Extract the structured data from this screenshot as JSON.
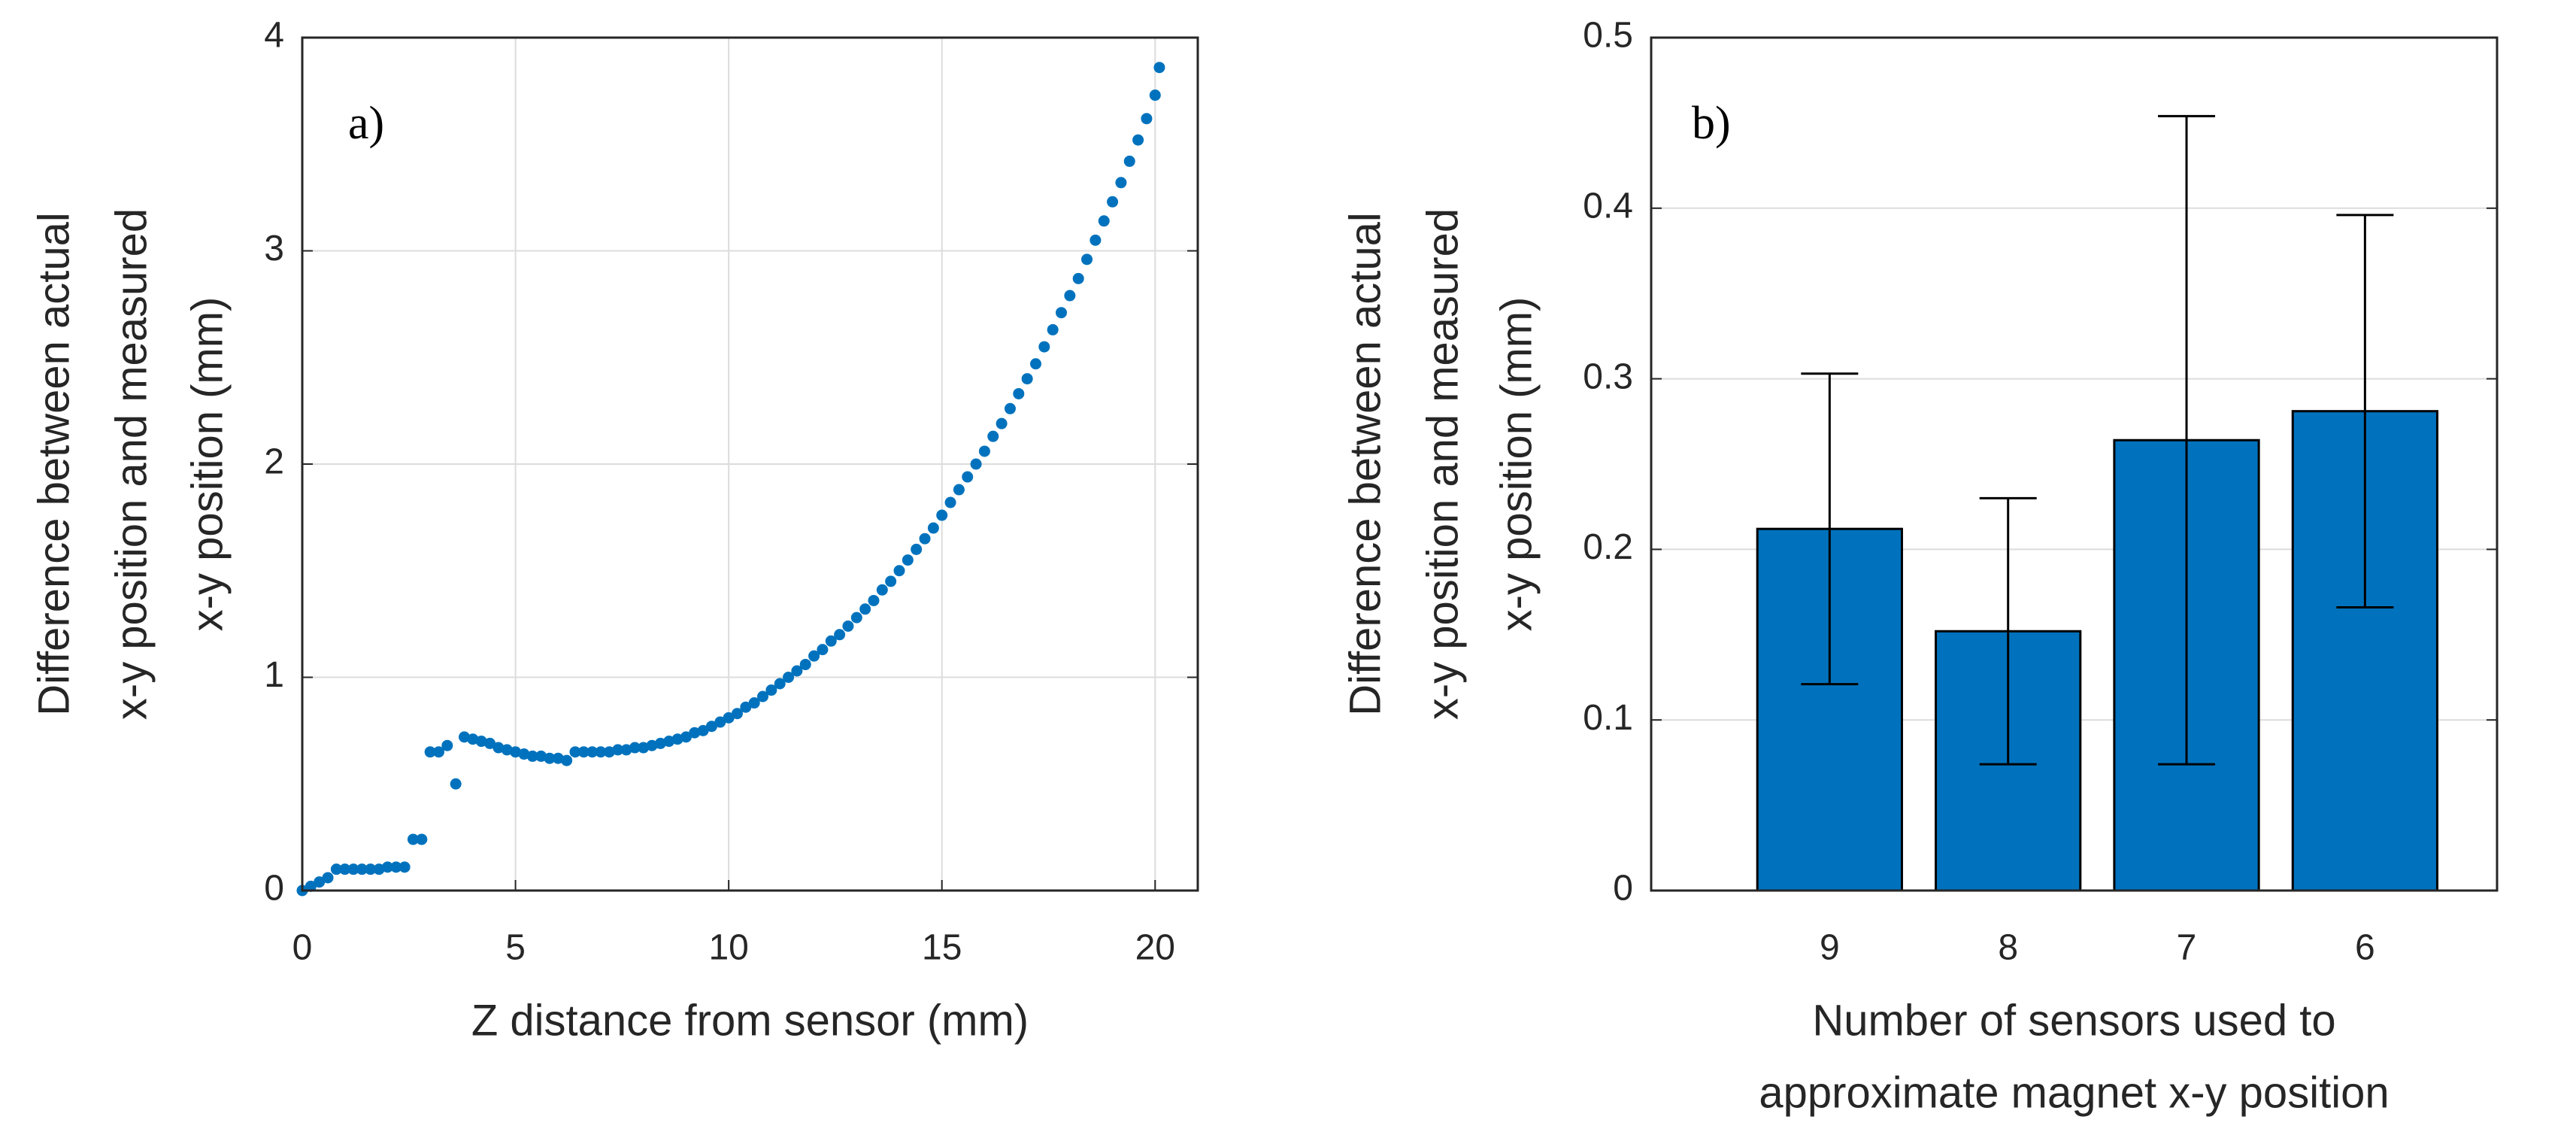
{
  "chart_data": [
    {
      "type": "scatter",
      "annotation": "a)",
      "xlabel": "Z distance from sensor (mm)",
      "ylabel": [
        "Difference between actual",
        "x-y position and measured",
        "x-y position (mm)"
      ],
      "color": "#0072bd",
      "x": [
        0,
        0.2,
        0.4,
        0.6,
        0.8,
        1,
        1.2,
        1.4,
        1.6,
        1.8,
        2,
        2.2,
        2.4,
        2.6,
        2.8,
        3,
        3.2,
        3.4,
        3.6,
        3.8,
        4,
        4.2,
        4.4,
        4.6,
        4.8,
        5,
        5.2,
        5.4,
        5.6,
        5.8,
        6,
        6.2,
        6.4,
        6.6,
        6.8,
        7,
        7.2,
        7.4,
        7.6,
        7.8,
        8,
        8.2,
        8.4,
        8.6,
        8.8,
        9,
        9.2,
        9.4,
        9.6,
        9.8,
        10,
        10.2,
        10.4,
        10.6,
        10.8,
        11,
        11.2,
        11.4,
        11.6,
        11.8,
        12,
        12.2,
        12.4,
        12.6,
        12.8,
        13,
        13.2,
        13.4,
        13.6,
        13.8,
        14,
        14.2,
        14.4,
        14.6,
        14.8,
        15,
        15.2,
        15.4,
        15.6,
        15.8,
        16,
        16.2,
        16.4,
        16.6,
        16.8,
        17,
        17.2,
        17.4,
        17.6,
        17.8,
        18,
        18.2,
        18.4,
        18.6,
        18.8,
        19,
        19.2,
        19.4,
        19.6,
        19.8,
        20,
        20.1
      ],
      "values": [
        0,
        0.02,
        0.04,
        0.06,
        0.1,
        0.1,
        0.1,
        0.1,
        0.1,
        0.1,
        0.11,
        0.11,
        0.11,
        0.24,
        0.24,
        0.65,
        0.65,
        0.68,
        0.5,
        0.72,
        0.71,
        0.7,
        0.69,
        0.67,
        0.66,
        0.65,
        0.64,
        0.63,
        0.63,
        0.62,
        0.62,
        0.61,
        0.65,
        0.65,
        0.65,
        0.65,
        0.65,
        0.66,
        0.66,
        0.67,
        0.67,
        0.68,
        0.69,
        0.7,
        0.71,
        0.72,
        0.74,
        0.75,
        0.77,
        0.79,
        0.81,
        0.83,
        0.86,
        0.88,
        0.91,
        0.94,
        0.97,
        1,
        1.03,
        1.06,
        1.1,
        1.13,
        1.17,
        1.2,
        1.24,
        1.28,
        1.32,
        1.36,
        1.41,
        1.45,
        1.5,
        1.55,
        1.6,
        1.65,
        1.7,
        1.76,
        1.82,
        1.88,
        1.94,
        2,
        2.06,
        2.13,
        2.19,
        2.26,
        2.33,
        2.4,
        2.47,
        2.55,
        2.63,
        2.71,
        2.79,
        2.87,
        2.96,
        3.05,
        3.14,
        3.23,
        3.32,
        3.42,
        3.52,
        3.62,
        3.73,
        3.86
      ],
      "xlim": [
        0,
        21
      ],
      "xticks": [
        0,
        5,
        10,
        15,
        20
      ],
      "ylim": [
        0,
        4
      ],
      "yticks": [
        0,
        1,
        2,
        3,
        4
      ],
      "grid": true
    },
    {
      "type": "bar",
      "annotation": "b)",
      "xlabel": [
        "Number of sensors used to",
        "approximate magnet x-y position"
      ],
      "ylabel": [
        "Difference between actual",
        "x-y position and measured",
        "x-y position (mm)"
      ],
      "color": "#0072bd",
      "categories": [
        "9",
        "8",
        "7",
        "6"
      ],
      "values": [
        0.212,
        0.152,
        0.264,
        0.281
      ],
      "errors": [
        0.091,
        0.078,
        0.19,
        0.115
      ],
      "ylim": [
        0,
        0.5
      ],
      "yticks": [
        0,
        0.1,
        0.2,
        0.3,
        0.4,
        0.5
      ],
      "grid": true
    }
  ]
}
